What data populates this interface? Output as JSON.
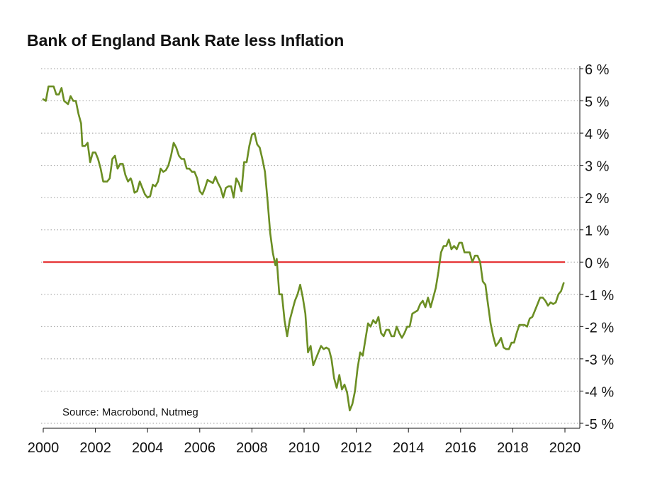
{
  "chart_data": {
    "type": "line",
    "title": "Bank of England Bank Rate less Inflation",
    "source": "Source: Macrobond, Nutmeg",
    "xlabel": "",
    "ylabel": "",
    "xlim": [
      2000,
      2020
    ],
    "ylim": [
      -5,
      6
    ],
    "x_ticks": [
      2000,
      2002,
      2004,
      2006,
      2008,
      2010,
      2012,
      2014,
      2016,
      2018,
      2020
    ],
    "x_tick_labels": [
      "2000",
      "2002",
      "2004",
      "2006",
      "2008",
      "2010",
      "2012",
      "2014",
      "2016",
      "2018",
      "2020"
    ],
    "y_ticks": [
      6,
      5,
      4,
      3,
      2,
      1,
      0,
      -1,
      -2,
      -3,
      -4,
      -5
    ],
    "y_tick_labels": [
      "6 %",
      "5 %",
      "4 %",
      "3 %",
      "2 %",
      "1 %",
      "0 %",
      "-1 %",
      "-2 %",
      "-3 %",
      "-4 %",
      "-5 %"
    ],
    "y_axis_side": "right",
    "grid": "horizontal dotted",
    "legend": "none",
    "series": [
      {
        "color": "#6b8e23",
        "points": [
          [
            2000.0,
            5.05
          ],
          [
            2000.1,
            5.0
          ],
          [
            2000.2,
            5.45
          ],
          [
            2000.4,
            5.45
          ],
          [
            2000.5,
            5.2
          ],
          [
            2000.6,
            5.2
          ],
          [
            2000.7,
            5.4
          ],
          [
            2000.8,
            5.0
          ],
          [
            2000.95,
            4.9
          ],
          [
            2001.05,
            5.15
          ],
          [
            2001.15,
            5.0
          ],
          [
            2001.25,
            5.0
          ],
          [
            2001.35,
            4.6
          ],
          [
            2001.45,
            4.3
          ],
          [
            2001.5,
            3.6
          ],
          [
            2001.6,
            3.6
          ],
          [
            2001.7,
            3.7
          ],
          [
            2001.8,
            3.1
          ],
          [
            2001.9,
            3.4
          ],
          [
            2002.0,
            3.4
          ],
          [
            2002.1,
            3.2
          ],
          [
            2002.2,
            2.9
          ],
          [
            2002.3,
            2.5
          ],
          [
            2002.45,
            2.5
          ],
          [
            2002.55,
            2.6
          ],
          [
            2002.65,
            3.2
          ],
          [
            2002.75,
            3.3
          ],
          [
            2002.85,
            2.9
          ],
          [
            2002.95,
            3.05
          ],
          [
            2003.05,
            3.05
          ],
          [
            2003.15,
            2.7
          ],
          [
            2003.25,
            2.5
          ],
          [
            2003.35,
            2.6
          ],
          [
            2003.4,
            2.5
          ],
          [
            2003.5,
            2.15
          ],
          [
            2003.6,
            2.2
          ],
          [
            2003.7,
            2.5
          ],
          [
            2003.8,
            2.3
          ],
          [
            2003.9,
            2.1
          ],
          [
            2004.0,
            2.0
          ],
          [
            2004.1,
            2.05
          ],
          [
            2004.2,
            2.4
          ],
          [
            2004.3,
            2.35
          ],
          [
            2004.4,
            2.5
          ],
          [
            2004.5,
            2.9
          ],
          [
            2004.6,
            2.8
          ],
          [
            2004.7,
            2.85
          ],
          [
            2004.8,
            3.0
          ],
          [
            2004.9,
            3.3
          ],
          [
            2005.0,
            3.7
          ],
          [
            2005.1,
            3.55
          ],
          [
            2005.2,
            3.3
          ],
          [
            2005.3,
            3.2
          ],
          [
            2005.4,
            3.2
          ],
          [
            2005.5,
            2.9
          ],
          [
            2005.6,
            2.9
          ],
          [
            2005.7,
            2.8
          ],
          [
            2005.8,
            2.8
          ],
          [
            2005.9,
            2.6
          ],
          [
            2006.0,
            2.2
          ],
          [
            2006.1,
            2.1
          ],
          [
            2006.2,
            2.3
          ],
          [
            2006.3,
            2.55
          ],
          [
            2006.4,
            2.5
          ],
          [
            2006.5,
            2.45
          ],
          [
            2006.6,
            2.65
          ],
          [
            2006.7,
            2.45
          ],
          [
            2006.8,
            2.3
          ],
          [
            2006.9,
            2.0
          ],
          [
            2007.0,
            2.3
          ],
          [
            2007.1,
            2.35
          ],
          [
            2007.2,
            2.35
          ],
          [
            2007.3,
            2.0
          ],
          [
            2007.4,
            2.6
          ],
          [
            2007.5,
            2.45
          ],
          [
            2007.6,
            2.2
          ],
          [
            2007.7,
            3.1
          ],
          [
            2007.8,
            3.1
          ],
          [
            2007.9,
            3.6
          ],
          [
            2008.0,
            3.95
          ],
          [
            2008.1,
            4.0
          ],
          [
            2008.2,
            3.65
          ],
          [
            2008.3,
            3.55
          ],
          [
            2008.4,
            3.2
          ],
          [
            2008.5,
            2.8
          ],
          [
            2008.6,
            1.9
          ],
          [
            2008.7,
            0.9
          ],
          [
            2008.8,
            0.3
          ],
          [
            2008.9,
            -0.1
          ],
          [
            2008.95,
            0.1
          ],
          [
            2009.05,
            -1.0
          ],
          [
            2009.15,
            -1.0
          ],
          [
            2009.25,
            -1.8
          ],
          [
            2009.35,
            -2.3
          ],
          [
            2009.45,
            -1.8
          ],
          [
            2009.55,
            -1.5
          ],
          [
            2009.65,
            -1.2
          ],
          [
            2009.75,
            -1.0
          ],
          [
            2009.85,
            -0.7
          ],
          [
            2009.95,
            -1.1
          ],
          [
            2010.05,
            -1.6
          ],
          [
            2010.15,
            -2.8
          ],
          [
            2010.25,
            -2.6
          ],
          [
            2010.35,
            -3.2
          ],
          [
            2010.45,
            -3.0
          ],
          [
            2010.55,
            -2.8
          ],
          [
            2010.65,
            -2.6
          ],
          [
            2010.75,
            -2.7
          ],
          [
            2010.85,
            -2.65
          ],
          [
            2010.95,
            -2.7
          ],
          [
            2011.05,
            -3.0
          ],
          [
            2011.15,
            -3.6
          ],
          [
            2011.25,
            -3.9
          ],
          [
            2011.35,
            -3.5
          ],
          [
            2011.45,
            -3.95
          ],
          [
            2011.55,
            -3.8
          ],
          [
            2011.65,
            -4.05
          ],
          [
            2011.75,
            -4.6
          ],
          [
            2011.85,
            -4.4
          ],
          [
            2011.95,
            -4.0
          ],
          [
            2012.05,
            -3.3
          ],
          [
            2012.15,
            -2.8
          ],
          [
            2012.25,
            -2.9
          ],
          [
            2012.35,
            -2.4
          ],
          [
            2012.45,
            -1.9
          ],
          [
            2012.55,
            -2.0
          ],
          [
            2012.65,
            -1.8
          ],
          [
            2012.75,
            -1.9
          ],
          [
            2012.85,
            -1.7
          ],
          [
            2012.95,
            -2.2
          ],
          [
            2013.05,
            -2.3
          ],
          [
            2013.15,
            -2.1
          ],
          [
            2013.25,
            -2.1
          ],
          [
            2013.35,
            -2.3
          ],
          [
            2013.45,
            -2.3
          ],
          [
            2013.55,
            -2.0
          ],
          [
            2013.65,
            -2.2
          ],
          [
            2013.75,
            -2.35
          ],
          [
            2013.85,
            -2.2
          ],
          [
            2013.95,
            -2.0
          ],
          [
            2014.05,
            -2.0
          ],
          [
            2014.15,
            -1.6
          ],
          [
            2014.25,
            -1.55
          ],
          [
            2014.35,
            -1.5
          ],
          [
            2014.45,
            -1.3
          ],
          [
            2014.55,
            -1.2
          ],
          [
            2014.65,
            -1.4
          ],
          [
            2014.75,
            -1.1
          ],
          [
            2014.85,
            -1.4
          ],
          [
            2014.95,
            -1.1
          ],
          [
            2015.05,
            -0.8
          ],
          [
            2015.15,
            -0.3
          ],
          [
            2015.25,
            0.3
          ],
          [
            2015.35,
            0.5
          ],
          [
            2015.45,
            0.5
          ],
          [
            2015.55,
            0.7
          ],
          [
            2015.65,
            0.4
          ],
          [
            2015.75,
            0.5
          ],
          [
            2015.85,
            0.4
          ],
          [
            2015.95,
            0.6
          ],
          [
            2016.05,
            0.6
          ],
          [
            2016.15,
            0.3
          ],
          [
            2016.25,
            0.3
          ],
          [
            2016.35,
            0.3
          ],
          [
            2016.45,
            0.0
          ],
          [
            2016.55,
            0.2
          ],
          [
            2016.65,
            0.2
          ],
          [
            2016.75,
            0.0
          ],
          [
            2016.85,
            -0.6
          ],
          [
            2016.95,
            -0.7
          ],
          [
            2017.05,
            -1.3
          ],
          [
            2017.15,
            -1.9
          ],
          [
            2017.25,
            -2.3
          ],
          [
            2017.35,
            -2.6
          ],
          [
            2017.45,
            -2.5
          ],
          [
            2017.55,
            -2.35
          ],
          [
            2017.65,
            -2.65
          ],
          [
            2017.75,
            -2.7
          ],
          [
            2017.85,
            -2.7
          ],
          [
            2017.95,
            -2.5
          ],
          [
            2018.05,
            -2.5
          ],
          [
            2018.15,
            -2.2
          ],
          [
            2018.25,
            -1.95
          ],
          [
            2018.35,
            -1.95
          ],
          [
            2018.45,
            -1.95
          ],
          [
            2018.55,
            -2.0
          ],
          [
            2018.65,
            -1.75
          ],
          [
            2018.75,
            -1.7
          ],
          [
            2018.85,
            -1.5
          ],
          [
            2018.95,
            -1.3
          ],
          [
            2019.05,
            -1.1
          ],
          [
            2019.15,
            -1.1
          ],
          [
            2019.25,
            -1.2
          ],
          [
            2019.35,
            -1.35
          ],
          [
            2019.45,
            -1.25
          ],
          [
            2019.55,
            -1.3
          ],
          [
            2019.65,
            -1.25
          ],
          [
            2019.75,
            -1.0
          ],
          [
            2019.85,
            -0.9
          ],
          [
            2019.95,
            -0.65
          ]
        ]
      }
    ],
    "reference_lines": [
      {
        "y": 0,
        "color": "#e31a1c"
      }
    ]
  }
}
